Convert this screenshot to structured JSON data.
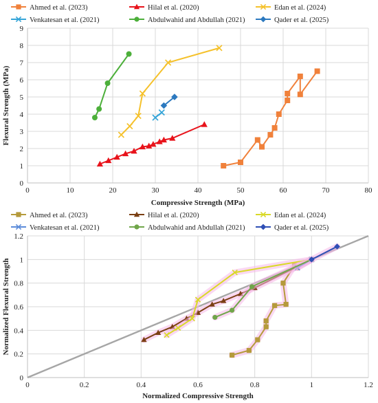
{
  "chart_data": [
    {
      "type": "line",
      "xlabel": "Compressive Strength (MPa)",
      "ylabel": "Flexural Strength (MPa)",
      "xlim": [
        0,
        80
      ],
      "ylim": [
        0,
        9
      ],
      "xticks": [
        "0",
        "10",
        "20",
        "30",
        "40",
        "50",
        "60",
        "70",
        "80"
      ],
      "yticks": [
        "0",
        "1",
        "2",
        "3",
        "4",
        "5",
        "6",
        "7",
        "8",
        "9"
      ],
      "grid": true,
      "legend_position": "top",
      "series": [
        {
          "name": "Ahmed et al. (2023)",
          "color": "#F0813B",
          "marker": "square",
          "points": [
            [
              46.0,
              1.0
            ],
            [
              50.0,
              1.2
            ],
            [
              54.0,
              2.5
            ],
            [
              55.0,
              2.1
            ],
            [
              57.0,
              2.8
            ],
            [
              58.0,
              3.2
            ],
            [
              59.0,
              4.0
            ],
            [
              61.0,
              4.8
            ],
            [
              61.0,
              5.2
            ],
            [
              64.0,
              6.2
            ],
            [
              64.0,
              5.15
            ],
            [
              68.0,
              6.5
            ]
          ]
        },
        {
          "name": "Hilal et al. (2020)",
          "color": "#E8131B",
          "marker": "triangle",
          "points": [
            [
              17.0,
              1.1
            ],
            [
              19.0,
              1.3
            ],
            [
              21.0,
              1.5
            ],
            [
              23.0,
              1.7
            ],
            [
              25.0,
              1.85
            ],
            [
              27.0,
              2.1
            ],
            [
              28.5,
              2.15
            ],
            [
              29.5,
              2.25
            ],
            [
              31.0,
              2.4
            ],
            [
              32.0,
              2.5
            ],
            [
              34.0,
              2.6
            ],
            [
              41.5,
              3.4
            ]
          ]
        },
        {
          "name": "Edan et al. (2024)",
          "color": "#F5C12B",
          "marker": "x",
          "points": [
            [
              22.0,
              2.8
            ],
            [
              24.0,
              3.3
            ],
            [
              26.0,
              3.9
            ],
            [
              27.0,
              5.2
            ],
            [
              33.0,
              7.0
            ],
            [
              45.0,
              7.85
            ]
          ]
        },
        {
          "name": "Venkatesan et al. (2021)",
          "color": "#33A4D8",
          "marker": "x",
          "points": [
            [
              30.0,
              3.8
            ],
            [
              31.5,
              4.1
            ]
          ]
        },
        {
          "name": "Abdulwahid and Abdullah (2021)",
          "color": "#4CAF3A",
          "marker": "circle",
          "points": [
            [
              15.8,
              3.8
            ],
            [
              16.8,
              4.3
            ],
            [
              18.8,
              5.8
            ],
            [
              23.8,
              7.5
            ]
          ]
        },
        {
          "name": "Qader et al. (2025)",
          "color": "#2C79BF",
          "marker": "diamond",
          "points": [
            [
              32.0,
              4.5
            ],
            [
              34.5,
              5.0
            ]
          ]
        }
      ]
    },
    {
      "type": "line",
      "xlabel": "Normalized Compressive Strength",
      "ylabel": "Normalized Flexural Strength",
      "xlim": [
        0,
        1.2
      ],
      "ylim": [
        0,
        1.2
      ],
      "xticks": [
        "0",
        "0.2",
        "0.4",
        "0.6",
        "0.8",
        "1",
        "1.2"
      ],
      "yticks": [
        "0",
        "0.2",
        "0.4",
        "0.6",
        "0.8",
        "1",
        "1.2"
      ],
      "grid": true,
      "legend_position": "top",
      "reference_line": {
        "color": "#A6A6A6",
        "from": [
          0,
          0
        ],
        "to": [
          1.2,
          1.2
        ]
      },
      "series": [
        {
          "name": "Ahmed et al. (2023)",
          "color": "#B59A3B",
          "marker": "square",
          "points": [
            [
              0.72,
              0.19
            ],
            [
              0.78,
              0.23
            ],
            [
              0.81,
              0.32
            ],
            [
              0.84,
              0.43
            ],
            [
              0.84,
              0.48
            ],
            [
              0.87,
              0.61
            ],
            [
              0.91,
              0.62
            ],
            [
              0.9,
              0.8
            ],
            [
              0.94,
              0.95
            ],
            [
              0.95,
              0.93
            ],
            [
              1.0,
              1.0
            ]
          ]
        },
        {
          "name": "Hilal et al. (2020)",
          "color": "#7A3F13",
          "marker": "triangle",
          "points": [
            [
              0.41,
              0.32
            ],
            [
              0.46,
              0.38
            ],
            [
              0.51,
              0.43
            ],
            [
              0.56,
              0.5
            ],
            [
              0.6,
              0.55
            ],
            [
              0.65,
              0.62
            ],
            [
              0.69,
              0.65
            ],
            [
              0.75,
              0.71
            ],
            [
              0.8,
              0.76
            ],
            [
              1.0,
              1.0
            ]
          ]
        },
        {
          "name": "Edan et al. (2024)",
          "color": "#D9D927",
          "marker": "x",
          "points": [
            [
              0.49,
              0.36
            ],
            [
              0.53,
              0.42
            ],
            [
              0.58,
              0.5
            ],
            [
              0.6,
              0.66
            ],
            [
              0.73,
              0.89
            ],
            [
              1.0,
              1.0
            ]
          ]
        },
        {
          "name": "Venkatesan et al. (2021)",
          "color": "#5B8BD9",
          "marker": "x",
          "points": [
            [
              0.95,
              0.93
            ],
            [
              1.0,
              1.0
            ]
          ]
        },
        {
          "name": "Abdulwahid and Abdullah (2021)",
          "color": "#70A64A",
          "marker": "circle",
          "points": [
            [
              0.66,
              0.51
            ],
            [
              0.72,
              0.57
            ],
            [
              0.79,
              0.77
            ],
            [
              1.0,
              1.0
            ]
          ]
        },
        {
          "name": "Qader et al. (2025)",
          "color": "#2F4FB5",
          "marker": "diamond",
          "points": [
            [
              1.0,
              1.0
            ],
            [
              1.09,
              1.11
            ]
          ]
        }
      ]
    }
  ]
}
